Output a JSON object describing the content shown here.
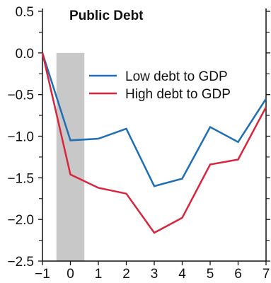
{
  "chart_data": {
    "type": "line",
    "title": "Public Debt",
    "xlabel": "",
    "ylabel": "",
    "x": [
      -1,
      0,
      1,
      2,
      3,
      4,
      5,
      6,
      7
    ],
    "xlim": [
      -1,
      7
    ],
    "ylim": [
      -2.5,
      0.5
    ],
    "xticks": [
      "−1",
      "0",
      "1",
      "2",
      "3",
      "4",
      "5",
      "6",
      "7"
    ],
    "yticks": [
      "0.5",
      "0.0",
      "−0.5",
      "−1.0",
      "−1.5",
      "−2.0",
      "−2.5"
    ],
    "ytick_values": [
      0.5,
      0.0,
      -0.5,
      -1.0,
      -1.5,
      -2.0,
      -2.5
    ],
    "shaded_region": [
      -0.5,
      0.5
    ],
    "grid": false,
    "legend_position": "top-right",
    "series": [
      {
        "name": "Low debt to GDP",
        "color": "#1f6fb5",
        "values": [
          0.0,
          -1.05,
          -1.03,
          -0.91,
          -1.6,
          -1.51,
          -0.89,
          -1.07,
          -0.55
        ]
      },
      {
        "name": "High debt to GDP",
        "color": "#d7263d",
        "values": [
          0.0,
          -1.46,
          -1.62,
          -1.69,
          -2.16,
          -1.98,
          -1.34,
          -1.28,
          -0.65
        ]
      }
    ]
  }
}
